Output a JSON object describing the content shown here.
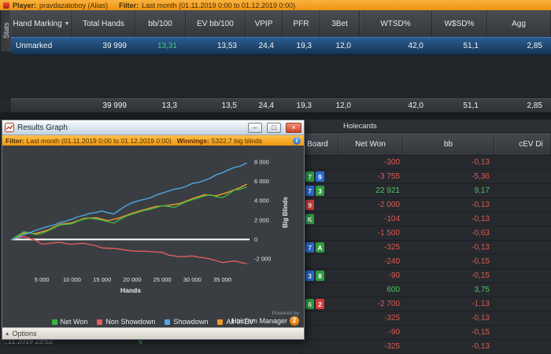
{
  "top_bar": {
    "player_label": "Player:",
    "player_value": "pravdazatoboy (Alias)",
    "filter_label": "Filter:",
    "filter_value": "Last month (01.11.2019 0:00 to 01.12.2019 0:00)"
  },
  "stats_tab": {
    "label": "Stats"
  },
  "stats_table": {
    "columns": [
      "Hand Marking",
      "Total Hands",
      "bb/100",
      "EV bb/100",
      "VPIP",
      "PFR",
      "3Bet",
      "WTSD%",
      "W$SD%",
      "Agg"
    ],
    "rows": [
      {
        "label": "Unmarked",
        "values": [
          "39 999",
          "13,31",
          "13,53",
          "24,4",
          "19,3",
          "12,0",
          "42,0",
          "51,1",
          "2,85"
        ]
      }
    ],
    "totals": [
      "39 999",
      "13,3",
      "13,5",
      "24,4",
      "19,3",
      "12,0",
      "42,0",
      "51,1",
      "2,85"
    ]
  },
  "hands_panel": {
    "holecards_label": "Holecards",
    "columns": [
      "Board",
      "Net Won",
      "bb",
      "cEV Di"
    ],
    "rows": [
      {
        "cards": [],
        "net_won": "-300",
        "bb": "-0,13"
      },
      {
        "cards": [
          "7c",
          "9d"
        ],
        "net_won": "-3 755",
        "bb": "-5,36"
      },
      {
        "cards": [
          "7d",
          "3c"
        ],
        "net_won": "22 921",
        "bb": "9,17"
      },
      {
        "cards": [
          "9h"
        ],
        "net_won": "-2 000",
        "bb": "-0,13"
      },
      {
        "cards": [
          "Kc"
        ],
        "net_won": "-104",
        "bb": "-0,13"
      },
      {
        "cards": [],
        "net_won": "-1 500",
        "bb": "-0,63"
      },
      {
        "cards": [
          "7d",
          "Ac"
        ],
        "net_won": "-325",
        "bb": "-0,13"
      },
      {
        "cards": [],
        "net_won": "-240",
        "bb": "-0,15"
      },
      {
        "cards": [
          "3d",
          "8c"
        ],
        "net_won": "-90",
        "bb": "-0,15"
      },
      {
        "cards": [],
        "net_won": "600",
        "bb": "3,75"
      },
      {
        "cards": [
          "6c",
          "2h"
        ],
        "net_won": "-2 700",
        "bb": "-1,13"
      },
      {
        "cards": [],
        "net_won": "-325",
        "bb": "-0,13"
      },
      {
        "cards": [],
        "net_won": "-90",
        "bb": "-0,15"
      },
      {
        "cards": [],
        "net_won": "-325",
        "bb": "-0,13"
      }
    ]
  },
  "results_graph": {
    "title": "Results Graph",
    "filter_label": "Filter:",
    "filter_text": "Last month (01.11.2019 0:00 to 01.12.2019 0:00)",
    "winnings_label": "Winnings:",
    "winnings_value": "5322,7 big blinds",
    "options_label": "Options",
    "powered_by": "Powered by",
    "brand": "Hold'em Manager",
    "brand_badge": "2",
    "chart_data": {
      "type": "line",
      "xlabel": "Hands",
      "ylabel": "Big Blinds",
      "xlim": [
        0,
        39500
      ],
      "ylim": [
        -3300,
        8900
      ],
      "x_ticks": [
        "5 000",
        "10 000",
        "15 000",
        "20 000",
        "25 000",
        "30 000",
        "35 000"
      ],
      "x_tick_values": [
        5000,
        10000,
        15000,
        20000,
        25000,
        30000,
        35000
      ],
      "y_ticks": [
        "8 000",
        "6 000",
        "4 000",
        "2 000",
        "0",
        "-2 000"
      ],
      "y_tick_values": [
        8000,
        6000,
        4000,
        2000,
        0,
        -2000
      ],
      "zero_line_color": "#ffffff",
      "legend": [
        {
          "label": "Net Won",
          "color": "#3bb53b"
        },
        {
          "label": "Non Showdown",
          "color": "#e25d5d"
        },
        {
          "label": "Showdown",
          "color": "#4da6e8"
        },
        {
          "label": "All-In EV",
          "color": "#f29a2e"
        }
      ],
      "series": [
        {
          "name": "Non Showdown",
          "color": "#e25d5d",
          "points": [
            [
              0,
              0
            ],
            [
              1000,
              150
            ],
            [
              2000,
              300
            ],
            [
              3000,
              100
            ],
            [
              4000,
              -100
            ],
            [
              5000,
              -480
            ],
            [
              6000,
              -420
            ],
            [
              7000,
              -350
            ],
            [
              8000,
              -300
            ],
            [
              9000,
              -420
            ],
            [
              10000,
              -500
            ],
            [
              11000,
              -430
            ],
            [
              12000,
              -400
            ],
            [
              13000,
              -520
            ],
            [
              14000,
              -650
            ],
            [
              15000,
              -880
            ],
            [
              16000,
              -900
            ],
            [
              17000,
              -920
            ],
            [
              18000,
              -1000
            ],
            [
              19000,
              -1100
            ],
            [
              20000,
              -1180
            ],
            [
              21000,
              -1220
            ],
            [
              22000,
              -1200
            ],
            [
              23000,
              -1260
            ],
            [
              24000,
              -1300
            ],
            [
              25000,
              -1320
            ],
            [
              26000,
              -1600
            ],
            [
              27000,
              -1700
            ],
            [
              28000,
              -1800
            ],
            [
              29000,
              -1750
            ],
            [
              30000,
              -1700
            ],
            [
              31000,
              -1820
            ],
            [
              32000,
              -1900
            ],
            [
              33000,
              -2020
            ],
            [
              34000,
              -2200
            ],
            [
              35000,
              -2380
            ],
            [
              36000,
              -2300
            ],
            [
              37000,
              -2220
            ],
            [
              38000,
              -2380
            ],
            [
              39000,
              -2500
            ]
          ]
        },
        {
          "name": "All-In EV",
          "color": "#f29a2e",
          "points": [
            [
              0,
              0
            ],
            [
              2000,
              680
            ],
            [
              4000,
              620
            ],
            [
              6000,
              980
            ],
            [
              8000,
              1580
            ],
            [
              10000,
              1720
            ],
            [
              12000,
              2180
            ],
            [
              14000,
              2250
            ],
            [
              16000,
              1950
            ],
            [
              18000,
              2250
            ],
            [
              20000,
              2720
            ],
            [
              22000,
              3080
            ],
            [
              24000,
              3420
            ],
            [
              26000,
              3520
            ],
            [
              28000,
              3720
            ],
            [
              30000,
              4220
            ],
            [
              32000,
              4620
            ],
            [
              34000,
              4520
            ],
            [
              36000,
              4900
            ],
            [
              38000,
              5380
            ],
            [
              39000,
              5700
            ]
          ]
        },
        {
          "name": "Net Won",
          "color": "#3bb53b",
          "points": [
            [
              0,
              0
            ],
            [
              1000,
              400
            ],
            [
              2000,
              800
            ],
            [
              3000,
              700
            ],
            [
              4000,
              500
            ],
            [
              5000,
              620
            ],
            [
              6000,
              900
            ],
            [
              7000,
              1200
            ],
            [
              8000,
              1500
            ],
            [
              9000,
              1560
            ],
            [
              10000,
              1620
            ],
            [
              11000,
              1900
            ],
            [
              12000,
              2100
            ],
            [
              13000,
              2200
            ],
            [
              14000,
              2120
            ],
            [
              15000,
              2000
            ],
            [
              16000,
              1820
            ],
            [
              17000,
              1700
            ],
            [
              18000,
              2100
            ],
            [
              19000,
              2400
            ],
            [
              20000,
              2620
            ],
            [
              21000,
              2800
            ],
            [
              22000,
              3000
            ],
            [
              23000,
              3120
            ],
            [
              24000,
              3300
            ],
            [
              25000,
              3500
            ],
            [
              26000,
              3420
            ],
            [
              27000,
              3320
            ],
            [
              28000,
              3620
            ],
            [
              29000,
              3900
            ],
            [
              30000,
              4100
            ],
            [
              31000,
              4300
            ],
            [
              32000,
              4500
            ],
            [
              33000,
              4620
            ],
            [
              34000,
              4420
            ],
            [
              35000,
              4320
            ],
            [
              36000,
              4700
            ],
            [
              37000,
              5100
            ],
            [
              38000,
              5200
            ],
            [
              39000,
              5420
            ]
          ]
        },
        {
          "name": "Showdown",
          "color": "#4da6e8",
          "points": [
            [
              0,
              0
            ],
            [
              1000,
              200
            ],
            [
              2000,
              500
            ],
            [
              3000,
              700
            ],
            [
              4000,
              950
            ],
            [
              5000,
              1150
            ],
            [
              6000,
              1350
            ],
            [
              7000,
              1500
            ],
            [
              8000,
              1750
            ],
            [
              9000,
              1900
            ],
            [
              10000,
              2100
            ],
            [
              11000,
              2350
            ],
            [
              12000,
              2500
            ],
            [
              13000,
              2700
            ],
            [
              14000,
              2780
            ],
            [
              15000,
              2950
            ],
            [
              16000,
              2750
            ],
            [
              17000,
              2650
            ],
            [
              18000,
              3100
            ],
            [
              19000,
              3500
            ],
            [
              20000,
              3800
            ],
            [
              21000,
              4000
            ],
            [
              22000,
              4150
            ],
            [
              23000,
              4300
            ],
            [
              24000,
              4600
            ],
            [
              25000,
              4800
            ],
            [
              26000,
              5000
            ],
            [
              27000,
              5200
            ],
            [
              28000,
              5300
            ],
            [
              29000,
              5500
            ],
            [
              30000,
              5800
            ],
            [
              31000,
              5900
            ],
            [
              32000,
              6100
            ],
            [
              33000,
              6350
            ],
            [
              34000,
              6700
            ],
            [
              35000,
              6900
            ],
            [
              36000,
              7200
            ],
            [
              37000,
              7450
            ],
            [
              38000,
              7600
            ],
            [
              39000,
              7900
            ]
          ]
        }
      ]
    }
  },
  "icons": {
    "sort_down": "▼",
    "minimize": "–",
    "maximize": "□",
    "close": "×",
    "info": "i",
    "options_arrow": "▲"
  },
  "status_bar": {
    "timestamp": "..11.2019 23:52",
    "partial_value": "6"
  }
}
